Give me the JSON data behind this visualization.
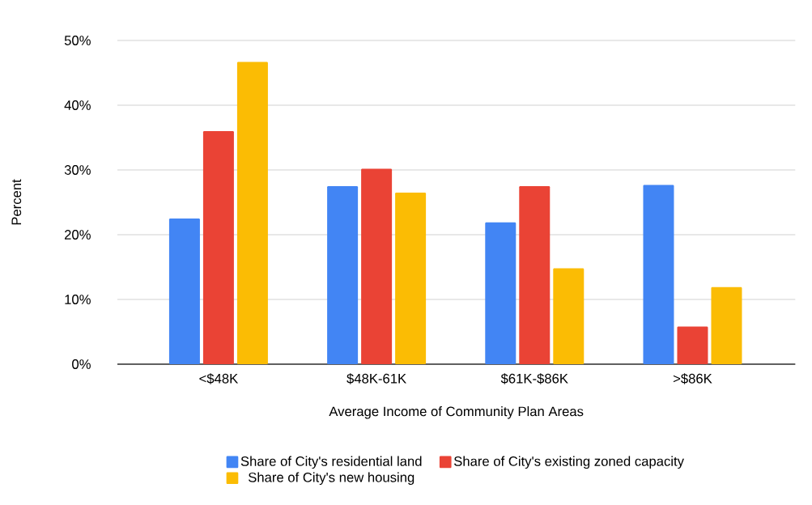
{
  "chart_data": {
    "type": "bar",
    "xlabel": "Average Income of Community Plan Areas",
    "ylabel": "Percent",
    "categories": [
      "<$48K",
      "$48K-61K",
      "$61K-$86K",
      ">$86K"
    ],
    "series": [
      {
        "name": "Share of City's residential land",
        "color": "#4285f4",
        "values": [
          22.5,
          27.5,
          21.9,
          27.7
        ]
      },
      {
        "name": "Share of City's existing zoned capacity",
        "color": "#ea4335",
        "values": [
          36.0,
          30.2,
          27.5,
          5.8
        ]
      },
      {
        "name": "Share of City's new housing",
        "color": "#fbbc04",
        "values": [
          46.7,
          26.5,
          14.8,
          11.9
        ]
      }
    ],
    "ylim": [
      0,
      50
    ],
    "yticks": [
      {
        "value": 0,
        "label": "0%"
      },
      {
        "value": 10,
        "label": "10%"
      },
      {
        "value": 20,
        "label": "20%"
      },
      {
        "value": 30,
        "label": "30%"
      },
      {
        "value": 40,
        "label": "40%"
      },
      {
        "value": 50,
        "label": "50%"
      }
    ],
    "grid": "y",
    "legend": "bottom"
  }
}
